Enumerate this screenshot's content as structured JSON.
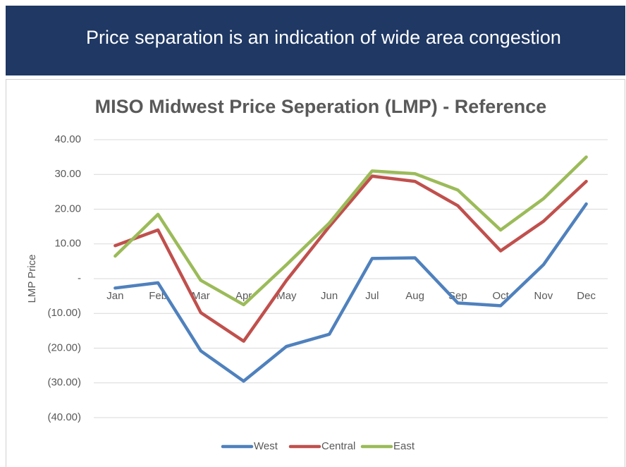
{
  "header": {
    "title": "Price separation is an indication of wide area congestion"
  },
  "chart_data": {
    "type": "line",
    "title": "MISO Midwest Price Seperation (LMP) - Reference",
    "y_label": "LMP Price",
    "categories": [
      "Jan",
      "Feb",
      "Mar",
      "Apr",
      "May",
      "Jun",
      "Jul",
      "Aug",
      "Sep",
      "Oct",
      "Nov",
      "Dec"
    ],
    "series": [
      {
        "name": "West",
        "color": "#4f81bd",
        "values": [
          -2.7,
          -1.2,
          -20.8,
          -29.5,
          -19.5,
          -16,
          5.8,
          6,
          -7,
          -7.8,
          4,
          21.5
        ]
      },
      {
        "name": "Central",
        "color": "#c0504d",
        "values": [
          9.5,
          14,
          -9.8,
          -18,
          -0.5,
          15,
          29.5,
          28,
          21,
          8,
          16.5,
          28
        ]
      },
      {
        "name": "East",
        "color": "#9bbb59",
        "values": [
          6.5,
          18.5,
          -0.5,
          -7.5,
          4,
          16,
          31,
          30.2,
          25.5,
          14,
          23,
          35
        ]
      }
    ],
    "ylim": [
      -40,
      40
    ],
    "yticks": [
      {
        "value": 40,
        "label": "40.00"
      },
      {
        "value": 30,
        "label": "30.00"
      },
      {
        "value": 20,
        "label": "20.00"
      },
      {
        "value": 10,
        "label": "10.00"
      },
      {
        "value": 0,
        "label": "-"
      },
      {
        "value": -10,
        "label": "(10.00)"
      },
      {
        "value": -20,
        "label": "(20.00)"
      },
      {
        "value": -30,
        "label": "(30.00)"
      },
      {
        "value": -40,
        "label": "(40.00)"
      }
    ],
    "grid": true,
    "legend": "bottom"
  }
}
